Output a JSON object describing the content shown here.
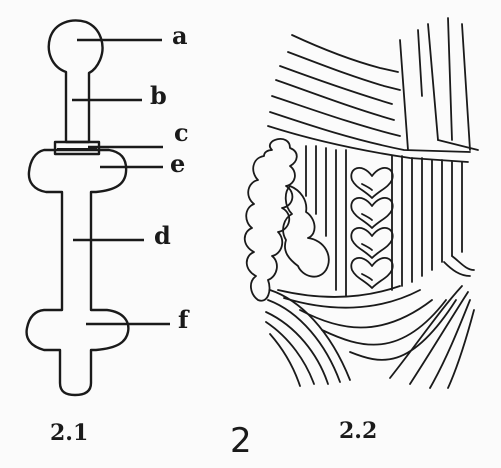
{
  "labels": {
    "a": "a",
    "b": "b",
    "c": "c",
    "d": "d",
    "e": "e",
    "f": "f"
  },
  "captions": {
    "left": "2.1",
    "right": "2.2",
    "figure_number": "2"
  },
  "colors": {
    "ink": "#1a1a1a",
    "background": "#fbfbfb"
  }
}
